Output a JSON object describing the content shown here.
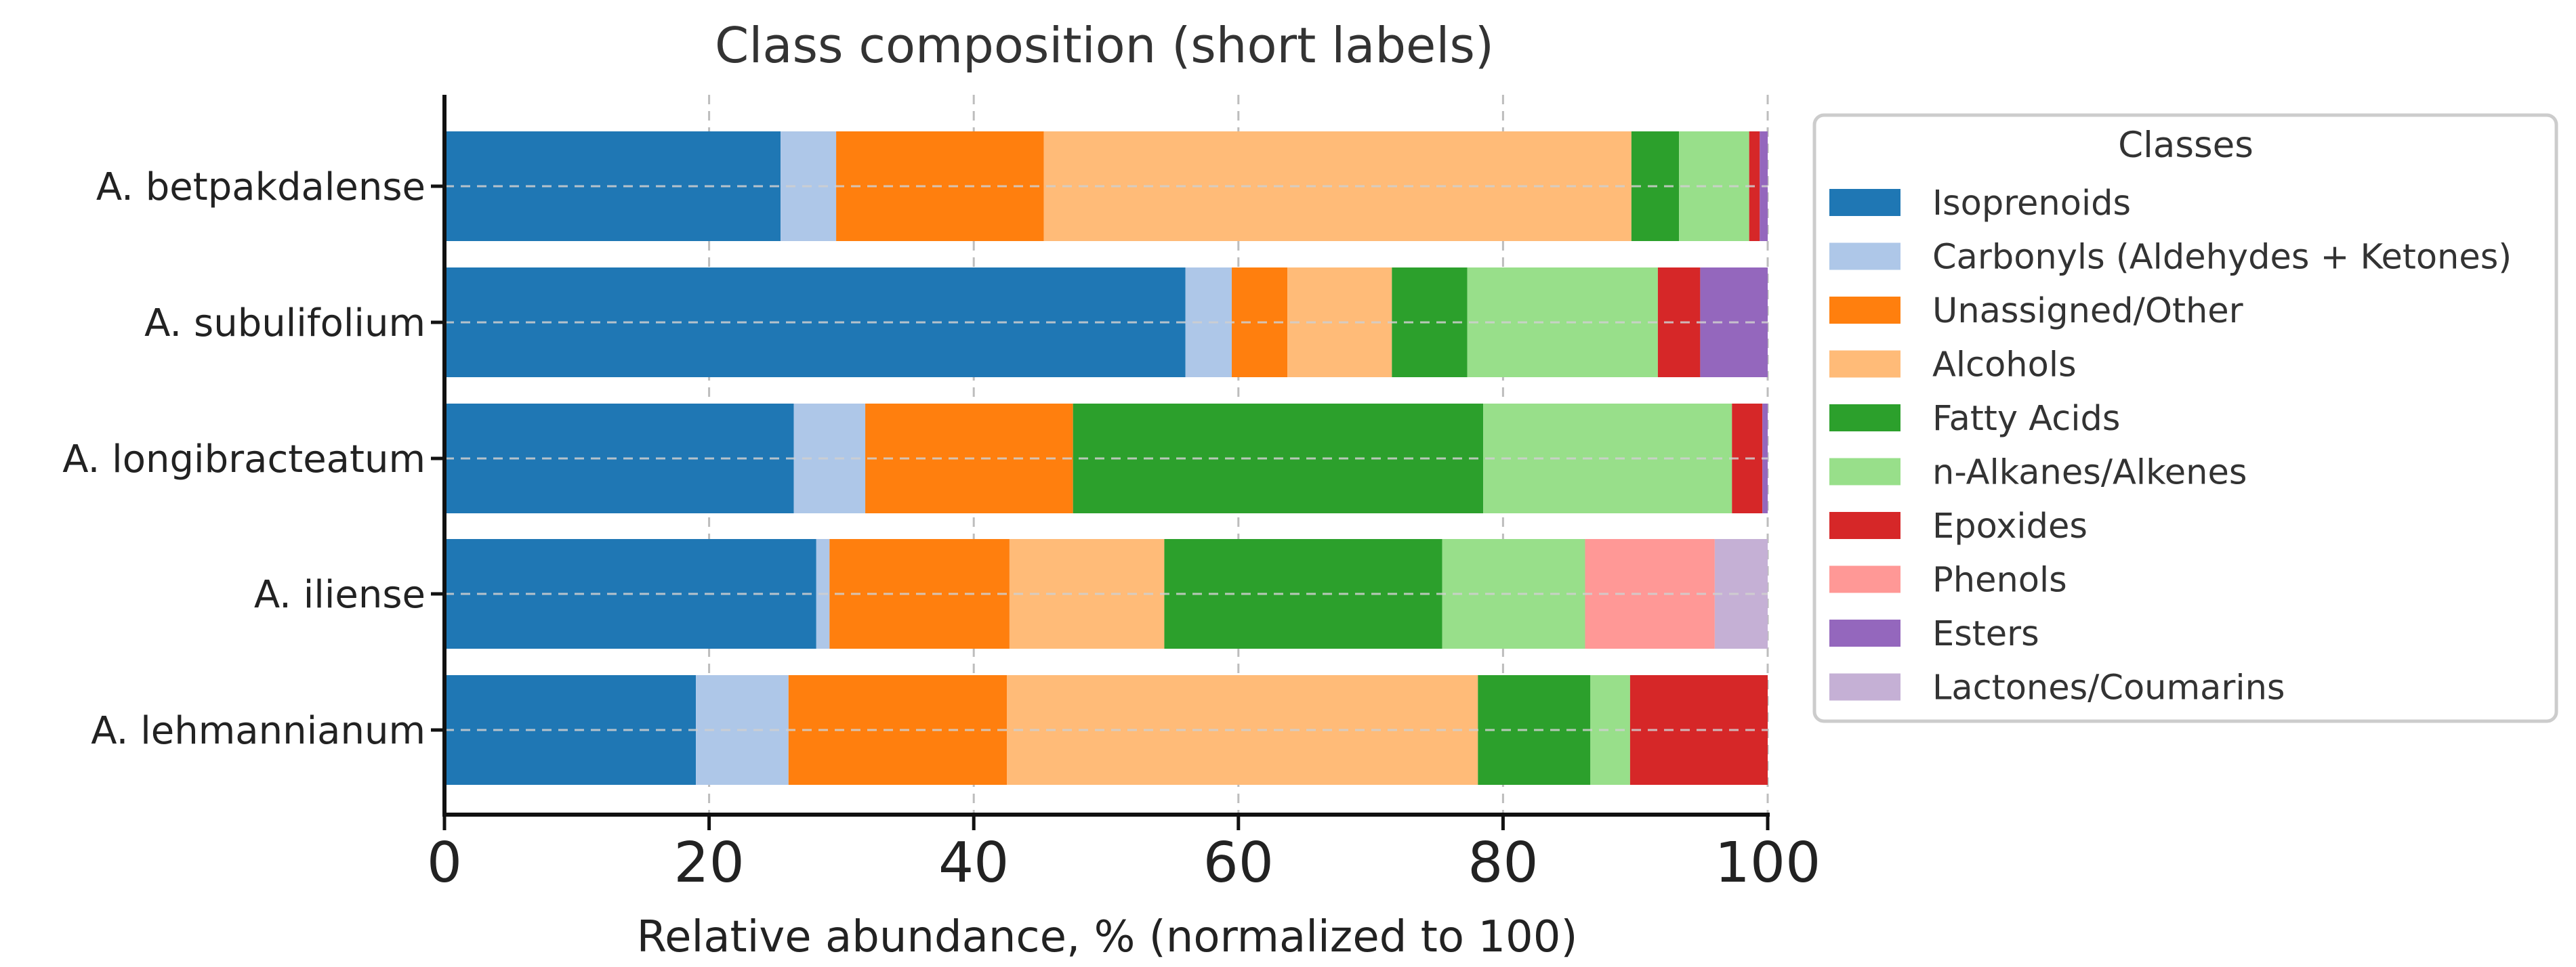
{
  "chart_data": {
    "type": "bar",
    "orientation": "horizontal",
    "stacked": true,
    "title": "Class composition (short labels)",
    "xlabel": "Relative abundance, % (normalized to 100)",
    "ylabel": "",
    "xlim": [
      0,
      100
    ],
    "xticks": [
      0,
      20,
      40,
      60,
      80,
      100
    ],
    "grid": true,
    "legend": {
      "title": "Classes",
      "position": "right"
    },
    "categories": [
      "A. betpakdalense",
      "A. subulifolium",
      "A. longibracteatum",
      "A. iliense",
      "A. lehmannianum"
    ],
    "series": [
      {
        "name": "Isoprenoids",
        "color": "#1f77b4",
        "values": [
          25.4,
          56.0,
          26.4,
          28.1,
          19.0
        ]
      },
      {
        "name": "Carbonyls (Aldehydes + Ketones)",
        "color": "#aec7e8",
        "values": [
          4.2,
          3.5,
          5.4,
          1.0,
          7.0
        ]
      },
      {
        "name": "Unassigned/Other",
        "color": "#ff7f0e",
        "values": [
          15.7,
          4.2,
          15.7,
          13.6,
          16.5
        ]
      },
      {
        "name": "Alcohols",
        "color": "#ffbb78",
        "values": [
          44.4,
          7.9,
          0.0,
          11.7,
          35.6
        ]
      },
      {
        "name": "Fatty Acids",
        "color": "#2ca02c",
        "values": [
          3.6,
          5.7,
          31.0,
          21.0,
          8.5
        ]
      },
      {
        "name": "n-Alkanes/Alkenes",
        "color": "#98df8a",
        "values": [
          5.3,
          14.4,
          18.8,
          10.8,
          3.0
        ]
      },
      {
        "name": "Epoxides",
        "color": "#d62728",
        "values": [
          0.8,
          3.2,
          2.3,
          0.0,
          10.4
        ]
      },
      {
        "name": "Phenols",
        "color": "#ff9896",
        "values": [
          0.0,
          0.0,
          0.0,
          9.8,
          0.0
        ]
      },
      {
        "name": "Esters",
        "color": "#9467bd",
        "values": [
          0.6,
          5.1,
          0.4,
          0.0,
          0.0
        ]
      },
      {
        "name": "Lactones/Coumarins",
        "color": "#c5b0d5",
        "values": [
          0.0,
          0.0,
          0.0,
          4.0,
          0.0
        ]
      }
    ]
  }
}
